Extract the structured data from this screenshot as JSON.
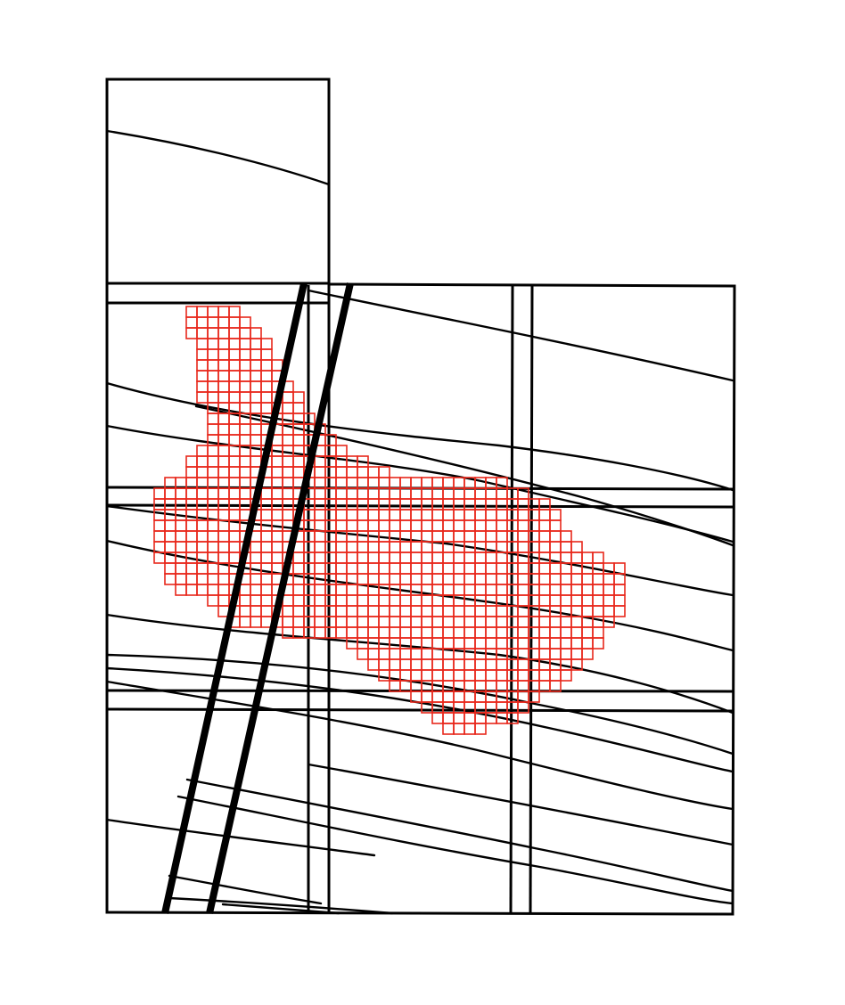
{
  "map": {
    "type": "grid-overlay-map",
    "colors": {
      "background": "#ffffff",
      "lines": "#000000",
      "grid_cells": "#e8281c"
    },
    "cell_size_units": 12,
    "grid_cells": {
      "row_spans": [
        [
          1,
          272,
          1
        ],
        [
          2,
          284,
          2
        ],
        [
          3,
          296,
          3
        ],
        [
          4,
          308,
          4
        ],
        [
          5,
          308,
          5
        ],
        [
          6,
          320,
          6
        ],
        [
          7,
          320,
          7
        ],
        [
          8,
          332,
          8
        ],
        [
          9,
          344,
          9
        ],
        [
          10,
          344,
          10
        ],
        [
          11,
          356,
          11
        ],
        [
          12,
          368,
          12
        ],
        [
          13,
          380,
          13
        ],
        [
          14,
          392,
          14
        ],
        [
          15,
          416,
          15
        ],
        [
          16,
          440,
          16
        ],
        [
          17,
          572,
          17
        ],
        [
          18,
          596,
          18
        ],
        [
          19,
          620,
          19
        ],
        [
          20,
          632,
          20
        ],
        [
          21,
          632,
          21
        ],
        [
          22,
          644,
          22
        ],
        [
          23,
          656,
          23
        ],
        [
          24,
          680,
          24
        ],
        [
          25,
          704,
          25
        ],
        [
          26,
          704,
          26
        ],
        [
          27,
          704,
          27
        ],
        [
          28,
          704,
          28
        ],
        [
          29,
          704,
          29
        ],
        [
          30,
          692,
          30
        ],
        [
          31,
          680,
          31
        ],
        [
          32,
          680,
          32
        ],
        [
          33,
          668,
          33
        ],
        [
          34,
          656,
          34
        ],
        [
          35,
          644,
          35
        ],
        [
          36,
          632,
          36
        ],
        [
          37,
          608,
          37
        ],
        [
          38,
          596,
          38
        ],
        [
          39,
          584,
          39
        ],
        [
          40,
          548,
          40
        ]
      ]
    }
  }
}
